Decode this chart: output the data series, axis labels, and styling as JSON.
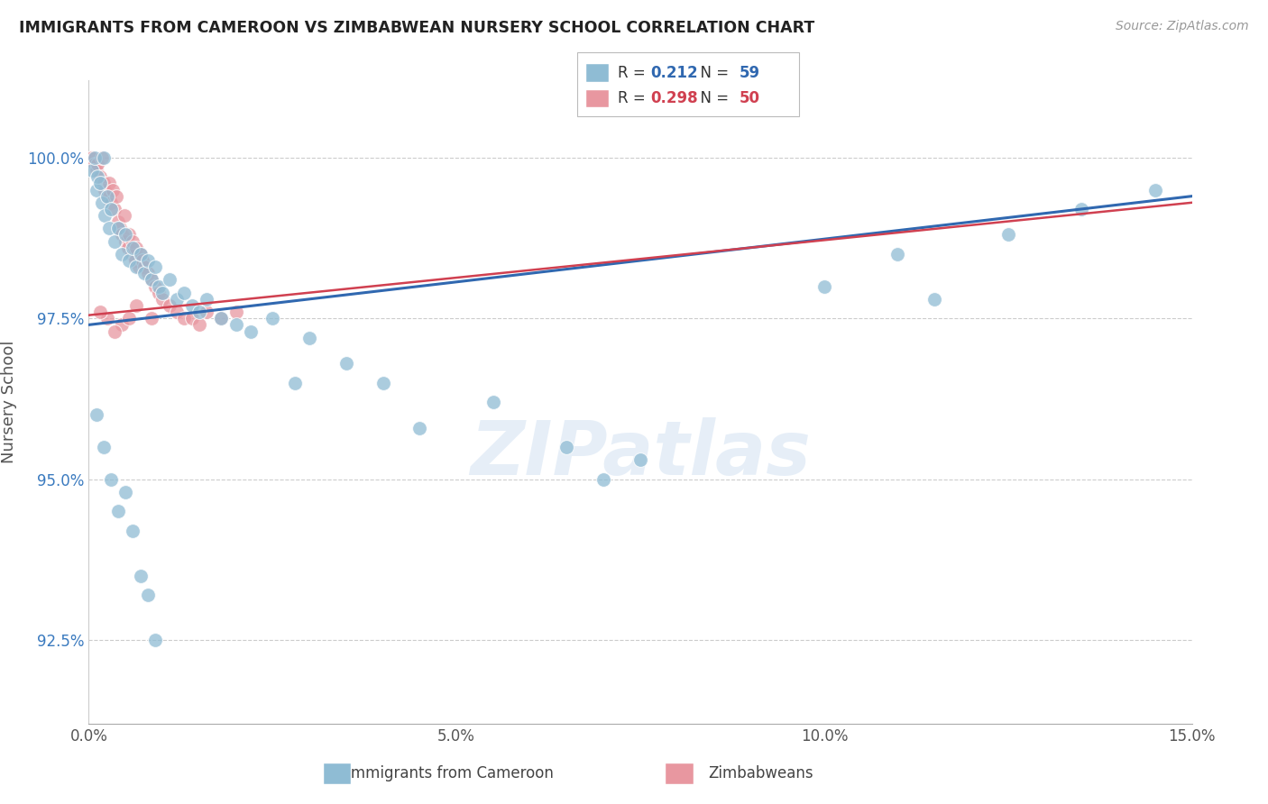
{
  "title": "IMMIGRANTS FROM CAMEROON VS ZIMBABWEAN NURSERY SCHOOL CORRELATION CHART",
  "source": "Source: ZipAtlas.com",
  "xlabel_vals": [
    0.0,
    5.0,
    10.0,
    15.0
  ],
  "ylabel_vals": [
    92.5,
    95.0,
    97.5,
    100.0
  ],
  "ylabel_ticks": [
    "92.5%",
    "95.0%",
    "97.5%",
    "100.0%"
  ],
  "xmin": 0.0,
  "xmax": 15.0,
  "ymin": 91.2,
  "ymax": 101.2,
  "ylabel": "Nursery School",
  "blue_R": 0.212,
  "blue_N": 59,
  "pink_R": 0.298,
  "pink_N": 50,
  "blue_color": "#8fbcd4",
  "pink_color": "#e897a0",
  "blue_line_color": "#3068b0",
  "pink_line_color": "#d04050",
  "legend_label_blue": "Immigrants from Cameroon",
  "legend_label_pink": "Zimbabweans",
  "blue_x": [
    0.05,
    0.08,
    0.1,
    0.12,
    0.15,
    0.18,
    0.2,
    0.22,
    0.25,
    0.28,
    0.3,
    0.35,
    0.4,
    0.45,
    0.5,
    0.55,
    0.6,
    0.65,
    0.7,
    0.75,
    0.8,
    0.85,
    0.9,
    0.95,
    1.0,
    1.1,
    1.2,
    1.3,
    1.4,
    1.5,
    1.6,
    1.8,
    2.0,
    2.2,
    2.5,
    2.8,
    3.0,
    3.5,
    4.0,
    4.5,
    5.5,
    6.5,
    7.0,
    7.5,
    10.0,
    11.0,
    11.5,
    12.5,
    13.5,
    14.5,
    0.1,
    0.2,
    0.3,
    0.4,
    0.5,
    0.6,
    0.7,
    0.8,
    0.9
  ],
  "blue_y": [
    99.8,
    100.0,
    99.5,
    99.7,
    99.6,
    99.3,
    100.0,
    99.1,
    99.4,
    98.9,
    99.2,
    98.7,
    98.9,
    98.5,
    98.8,
    98.4,
    98.6,
    98.3,
    98.5,
    98.2,
    98.4,
    98.1,
    98.3,
    98.0,
    97.9,
    98.1,
    97.8,
    97.9,
    97.7,
    97.6,
    97.8,
    97.5,
    97.4,
    97.3,
    97.5,
    96.5,
    97.2,
    96.8,
    96.5,
    95.8,
    96.2,
    95.5,
    95.0,
    95.3,
    98.0,
    98.5,
    97.8,
    98.8,
    99.2,
    99.5,
    96.0,
    95.5,
    95.0,
    94.5,
    94.8,
    94.2,
    93.5,
    93.2,
    92.5
  ],
  "pink_x": [
    0.03,
    0.05,
    0.08,
    0.1,
    0.12,
    0.15,
    0.18,
    0.2,
    0.22,
    0.25,
    0.28,
    0.3,
    0.33,
    0.35,
    0.38,
    0.4,
    0.43,
    0.45,
    0.48,
    0.5,
    0.53,
    0.55,
    0.58,
    0.6,
    0.63,
    0.65,
    0.68,
    0.7,
    0.73,
    0.75,
    0.8,
    0.85,
    0.9,
    0.95,
    1.0,
    1.1,
    1.2,
    1.3,
    1.4,
    1.5,
    1.6,
    1.8,
    2.0,
    0.25,
    0.45,
    0.65,
    0.85,
    0.15,
    0.35,
    0.55
  ],
  "pink_y": [
    100.0,
    100.0,
    99.9,
    99.8,
    99.9,
    99.7,
    100.0,
    99.6,
    99.5,
    99.4,
    99.6,
    99.3,
    99.5,
    99.2,
    99.4,
    99.0,
    98.9,
    98.8,
    99.1,
    98.7,
    98.6,
    98.8,
    98.5,
    98.7,
    98.4,
    98.6,
    98.3,
    98.5,
    98.4,
    98.3,
    98.2,
    98.1,
    98.0,
    97.9,
    97.8,
    97.7,
    97.6,
    97.5,
    97.5,
    97.4,
    97.6,
    97.5,
    97.6,
    97.5,
    97.4,
    97.7,
    97.5,
    97.6,
    97.3,
    97.5
  ],
  "blue_trend_x": [
    0.0,
    15.0
  ],
  "blue_trend_y": [
    97.4,
    99.4
  ],
  "pink_trend_x": [
    0.0,
    15.0
  ],
  "pink_trend_y": [
    97.55,
    99.3
  ]
}
